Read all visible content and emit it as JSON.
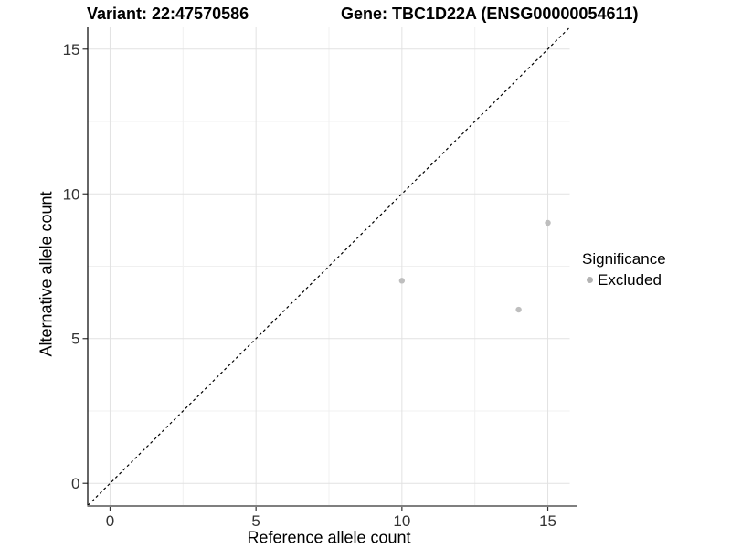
{
  "figure": {
    "title_left": "Variant: 22:47570586",
    "title_right": "Gene: TBC1D22A (ENSG00000054611)"
  },
  "chart_data": {
    "type": "scatter",
    "title": "Variant: 22:47570586  /  Gene: TBC1D22A (ENSG00000054611)",
    "xlabel": "Reference allele count",
    "ylabel": "Alternative allele count",
    "xlim": [
      -0.75,
      15.75
    ],
    "ylim": [
      -0.75,
      15.75
    ],
    "x_major_ticks": [
      0,
      5,
      10,
      15
    ],
    "y_major_ticks": [
      0,
      5,
      10,
      15
    ],
    "x_minor_ticks": [
      2.5,
      7.5,
      12.5
    ],
    "y_minor_ticks": [
      2.5,
      7.5,
      12.5
    ],
    "grid": "major+minor",
    "reference_line": {
      "kind": "identity-diagonal-y-equals-x",
      "dashed": true,
      "color": "#000000"
    },
    "series": [
      {
        "name": "Excluded",
        "color": "#bebebe",
        "marker": "circle",
        "points": [
          [
            10,
            7
          ],
          [
            14,
            6
          ],
          [
            15,
            9
          ]
        ]
      }
    ],
    "legend": {
      "title": "Significance",
      "position": "right",
      "items": [
        {
          "label": "Excluded",
          "color": "#b3b3b3"
        }
      ]
    }
  },
  "style_colors": {
    "grid_major": "#e2e2e2",
    "grid_minor": "#f0f0f0",
    "axis_line_left": "#000000",
    "axis_line_bottom": "#7f7f7f",
    "tick_mark": "#333333"
  }
}
